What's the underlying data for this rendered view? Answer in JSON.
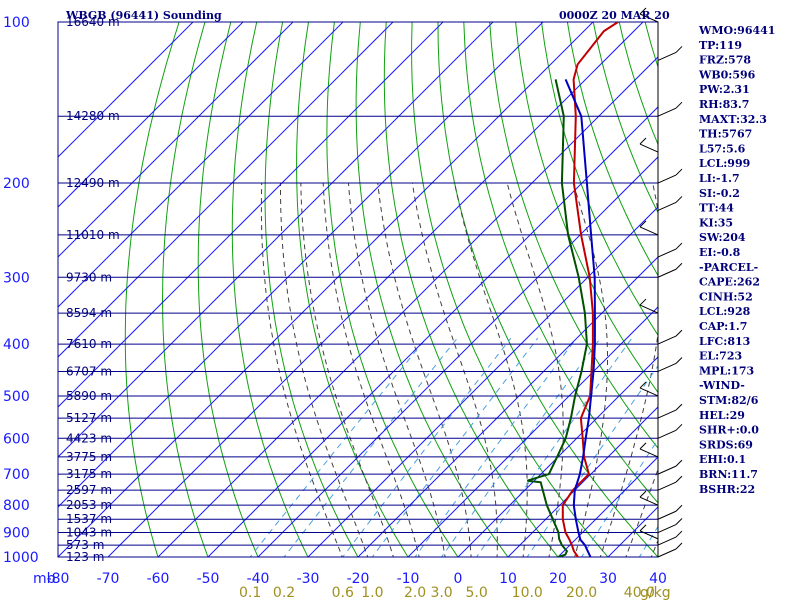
{
  "header": {
    "station_title": "WBGB (96441) Sounding",
    "time_title": "0000Z 20 MAR 20"
  },
  "colors": {
    "frame": "#00008b",
    "isotherm": "#1a1aff",
    "dry_adiabat": "#10a010",
    "moist_adiabat": "#404040",
    "mixing_ratio": "#4aa0e0",
    "temperature": "#c00000",
    "dewpoint": "#005000",
    "parcel": "#0000c0",
    "wind_barb": "#000000"
  },
  "chart_data": {
    "type": "skew-t",
    "title": "WBGB (96441) Sounding",
    "subtitle": "0000Z 20 MAR 20",
    "pressure_axis": {
      "scale": "log",
      "range_mb": [
        1000,
        100
      ],
      "unit_label": "mb",
      "ticks": [
        "100",
        "200",
        "300",
        "400",
        "500",
        "600",
        "700",
        "800",
        "900",
        "1000"
      ],
      "tick_values": [
        100,
        200,
        300,
        400,
        500,
        600,
        700,
        800,
        900,
        1000
      ]
    },
    "temperature_axis": {
      "range_c": [
        -80,
        40
      ],
      "ticks": [
        "-80",
        "-70",
        "-60",
        "-50",
        "-40",
        "-30",
        "-20",
        "-10",
        "0",
        "10",
        "20",
        "30",
        "40"
      ],
      "tick_values": [
        -80,
        -70,
        -60,
        -50,
        -40,
        -30,
        -20,
        -10,
        0,
        10,
        20,
        30,
        40
      ]
    },
    "mixing_ratio_labels": [
      "0.1",
      "0.2",
      "0.6",
      "1.0",
      "2.0",
      "3.0",
      "5.0",
      "10.0",
      "20.0",
      "40.0",
      "g/kg"
    ],
    "mixing_ratio_values": [
      0.1,
      0.2,
      0.6,
      1.0,
      2.0,
      3.0,
      5.0,
      10.0,
      20.0,
      40.0
    ],
    "height_levels": [
      {
        "p": 100,
        "label": "16640 m"
      },
      {
        "p": 150,
        "label": "14280 m"
      },
      {
        "p": 200,
        "label": "12490 m"
      },
      {
        "p": 250,
        "label": "11010 m"
      },
      {
        "p": 300,
        "label": "9730 m"
      },
      {
        "p": 350,
        "label": "8594 m"
      },
      {
        "p": 400,
        "label": "7610 m"
      },
      {
        "p": 450,
        "label": "6707 m"
      },
      {
        "p": 500,
        "label": "5890 m"
      },
      {
        "p": 550,
        "label": "5127 m"
      },
      {
        "p": 600,
        "label": "4423 m"
      },
      {
        "p": 650,
        "label": "3775 m"
      },
      {
        "p": 700,
        "label": "3175 m"
      },
      {
        "p": 750,
        "label": "2597 m"
      },
      {
        "p": 800,
        "label": "2053 m"
      },
      {
        "p": 850,
        "label": "1537 m"
      },
      {
        "p": 900,
        "label": "1043 m"
      },
      {
        "p": 950,
        "label": "573 m"
      },
      {
        "p": 1000,
        "label": "123 m"
      }
    ],
    "series": [
      {
        "name": "",
        "role": "temperature",
        "points": [
          [
            1006,
            23.0
          ],
          [
            1000,
            24.0
          ],
          [
            975,
            22.0
          ],
          [
            950,
            20.4
          ],
          [
            925,
            18.6
          ],
          [
            900,
            16.6
          ],
          [
            850,
            13.4
          ],
          [
            800,
            10.6
          ],
          [
            750,
            9.6
          ],
          [
            700,
            9.6
          ],
          [
            650,
            5.2
          ],
          [
            600,
            1.2
          ],
          [
            550,
            -3.2
          ],
          [
            500,
            -5.8
          ],
          [
            450,
            -10.4
          ],
          [
            400,
            -15.6
          ],
          [
            350,
            -21.8
          ],
          [
            300,
            -29.6
          ],
          [
            250,
            -39.8
          ],
          [
            200,
            -51.6
          ],
          [
            150,
            -64.6
          ],
          [
            128,
            -72.4
          ],
          [
            120,
            -74.6
          ],
          [
            104,
            -76.0
          ],
          [
            100,
            -75.0
          ]
        ]
      },
      {
        "name": "",
        "role": "dewpoint",
        "points": [
          [
            1006,
            20.5
          ],
          [
            1000,
            20.0
          ],
          [
            990,
            21.0
          ],
          [
            975,
            20.6
          ],
          [
            950,
            18.4
          ],
          [
            925,
            16.6
          ],
          [
            900,
            15.2
          ],
          [
            850,
            11.4
          ],
          [
            800,
            7.4
          ],
          [
            750,
            3.6
          ],
          [
            725,
            1.6
          ],
          [
            720,
            -1.4
          ],
          [
            700,
            1.6
          ],
          [
            650,
            -0.2
          ],
          [
            600,
            -2.2
          ],
          [
            550,
            -5.2
          ],
          [
            500,
            -8.8
          ],
          [
            450,
            -12.4
          ],
          [
            400,
            -16.8
          ],
          [
            350,
            -23.4
          ],
          [
            300,
            -31.8
          ],
          [
            250,
            -42.4
          ],
          [
            200,
            -54.0
          ],
          [
            150,
            -67.0
          ],
          [
            128,
            -76.0
          ]
        ]
      },
      {
        "name": "",
        "role": "parcel",
        "points": [
          [
            1000,
            26.5
          ],
          [
            950,
            23.0
          ],
          [
            928,
            21.0
          ],
          [
            900,
            19.2
          ],
          [
            850,
            16.0
          ],
          [
            800,
            12.8
          ],
          [
            750,
            10.0
          ],
          [
            700,
            7.8
          ],
          [
            650,
            5.0
          ],
          [
            600,
            1.8
          ],
          [
            550,
            -1.6
          ],
          [
            500,
            -5.6
          ],
          [
            450,
            -10.0
          ],
          [
            400,
            -15.2
          ],
          [
            350,
            -21.4
          ],
          [
            300,
            -28.6
          ],
          [
            250,
            -37.8
          ],
          [
            200,
            -49.0
          ],
          [
            150,
            -63.5
          ],
          [
            128,
            -74.0
          ]
        ]
      }
    ],
    "wind_barbs_mb": [
      100,
      118,
      150,
      175,
      200,
      225,
      250,
      275,
      300,
      350,
      400,
      450,
      500,
      550,
      600,
      650,
      700,
      750,
      800,
      850,
      900,
      925,
      950,
      1000
    ]
  },
  "stats": [
    "WMO:96441",
    "TP:119",
    "FRZ:578",
    "WB0:596",
    "PW:2.31",
    "RH:83.7",
    "MAXT:32.3",
    "TH:5767",
    "L57:5.6",
    "LCL:999",
    "LI:-1.7",
    "SI:-0.2",
    "TT:44",
    "KI:35",
    "SW:204",
    "EI:-0.8",
    "-PARCEL-",
    "CAPE:262",
    "CINH:52",
    "LCL:928",
    "CAP:1.7",
    "LFC:813",
    "EL:723",
    "MPL:173",
    "-WIND-",
    "STM:82/6",
    "HEL:29",
    "SHR+:0.0",
    "SRDS:69",
    "EHI:0.1",
    "BRN:11.7",
    "BSHR:22"
  ]
}
